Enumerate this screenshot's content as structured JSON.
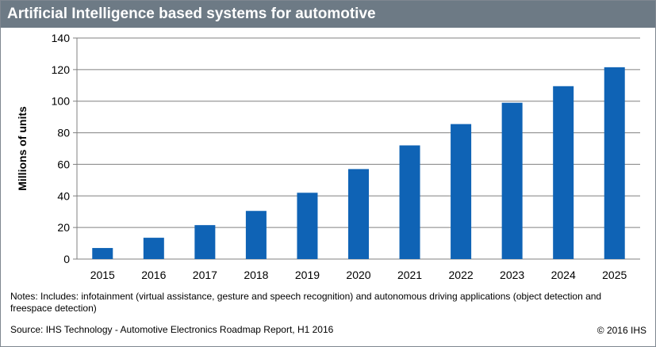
{
  "header": {
    "title": "Artificial Intelligence based systems for automotive"
  },
  "chart_data": {
    "type": "bar",
    "title": "",
    "xlabel": "",
    "ylabel": "Millions of units",
    "categories": [
      "2015",
      "2016",
      "2017",
      "2018",
      "2019",
      "2020",
      "2021",
      "2022",
      "2023",
      "2024",
      "2025"
    ],
    "values": [
      7,
      13.5,
      21.5,
      30.5,
      42,
      57,
      72,
      85.5,
      99,
      109.5,
      121.5
    ],
    "ylim": [
      0,
      140
    ],
    "yticks": [
      "0",
      "20",
      "40",
      "60",
      "80",
      "100",
      "120",
      "140"
    ],
    "grid": "horizontal",
    "legend": "none",
    "bar_color": "#0f63b5"
  },
  "footer": {
    "notes": "Notes: Includes: infotainment (virtual assistance, gesture and speech recognition) and autonomous driving applications (object detection and freespace detection)",
    "source": "Source: IHS Technology - Automotive Electronics Roadmap Report, H1 2016",
    "copyright": "© 2016 IHS"
  },
  "colors": {
    "title_bar": "#6d7a85",
    "grid": "#808080",
    "axis": "#808080"
  }
}
